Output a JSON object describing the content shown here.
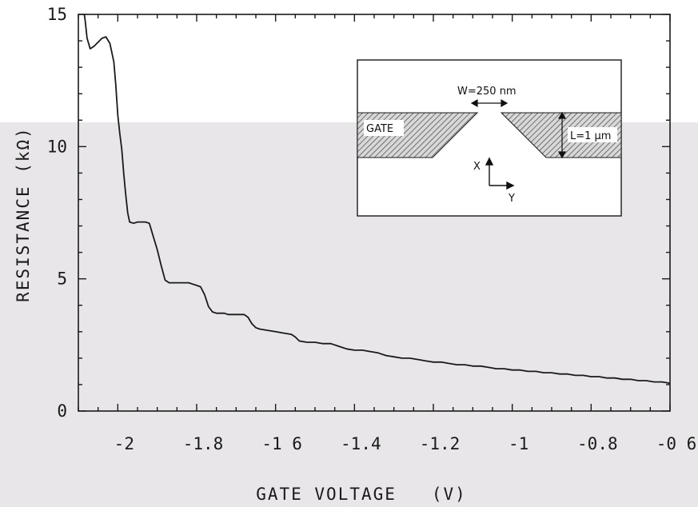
{
  "chart_data": {
    "type": "line",
    "xlabel": "GATE VOLTAGE   (V)",
    "ylabel": "RESISTANCE  (kΩ)",
    "xlim": [
      -2.1,
      -0.6
    ],
    "ylim": [
      0,
      15
    ],
    "x_ticks": [
      -2,
      -1.8,
      -1.6,
      -1.4,
      -1.2,
      -1,
      -0.8,
      -0.6
    ],
    "x_tick_labels": [
      "-2",
      "-1.8",
      "-1 6",
      "-1.4",
      "-1.2",
      "-1",
      "-0.8",
      "-0 6"
    ],
    "y_ticks": [
      0,
      5,
      10,
      15
    ],
    "y_tick_labels": [
      "0",
      "5",
      "10",
      "15"
    ],
    "grid": false,
    "series": [
      {
        "x": [
          -2.085,
          -2.083,
          -2.078,
          -2.07,
          -2.06,
          -2.05,
          -2.04,
          -2.03,
          -2.02,
          -2.01,
          -2.005,
          -2.0,
          -1.995,
          -1.99,
          -1.985,
          -1.98,
          -1.975,
          -1.97,
          -1.96,
          -1.95,
          -1.94,
          -1.93,
          -1.92,
          -1.91,
          -1.9,
          -1.89,
          -1.88,
          -1.87,
          -1.86,
          -1.85,
          -1.84,
          -1.83,
          -1.82,
          -1.81,
          -1.8,
          -1.79,
          -1.78,
          -1.77,
          -1.76,
          -1.75,
          -1.74,
          -1.73,
          -1.72,
          -1.7,
          -1.68,
          -1.67,
          -1.66,
          -1.65,
          -1.64,
          -1.62,
          -1.6,
          -1.58,
          -1.56,
          -1.55,
          -1.54,
          -1.52,
          -1.5,
          -1.48,
          -1.46,
          -1.44,
          -1.43,
          -1.42,
          -1.4,
          -1.38,
          -1.36,
          -1.34,
          -1.32,
          -1.3,
          -1.28,
          -1.26,
          -1.24,
          -1.22,
          -1.2,
          -1.18,
          -1.16,
          -1.14,
          -1.12,
          -1.1,
          -1.08,
          -1.06,
          -1.04,
          -1.02,
          -1.0,
          -0.98,
          -0.96,
          -0.94,
          -0.92,
          -0.9,
          -0.88,
          -0.86,
          -0.84,
          -0.82,
          -0.8,
          -0.78,
          -0.76,
          -0.74,
          -0.72,
          -0.7,
          -0.68,
          -0.66,
          -0.64,
          -0.62,
          -0.6
        ],
        "y": [
          15.2,
          14.8,
          14.1,
          13.7,
          13.8,
          13.95,
          14.1,
          14.15,
          13.9,
          13.2,
          12.3,
          11.2,
          10.5,
          9.9,
          9.0,
          8.2,
          7.5,
          7.15,
          7.1,
          7.15,
          7.15,
          7.15,
          7.1,
          6.6,
          6.1,
          5.5,
          4.95,
          4.85,
          4.85,
          4.85,
          4.85,
          4.85,
          4.85,
          4.8,
          4.75,
          4.7,
          4.4,
          3.95,
          3.75,
          3.7,
          3.7,
          3.7,
          3.65,
          3.65,
          3.65,
          3.55,
          3.3,
          3.15,
          3.1,
          3.05,
          3.0,
          2.95,
          2.9,
          2.8,
          2.65,
          2.6,
          2.6,
          2.55,
          2.55,
          2.45,
          2.4,
          2.35,
          2.3,
          2.3,
          2.25,
          2.2,
          2.1,
          2.05,
          2.0,
          2.0,
          1.95,
          1.9,
          1.85,
          1.85,
          1.8,
          1.75,
          1.75,
          1.7,
          1.7,
          1.65,
          1.6,
          1.6,
          1.55,
          1.55,
          1.5,
          1.5,
          1.45,
          1.45,
          1.4,
          1.4,
          1.35,
          1.35,
          1.3,
          1.3,
          1.25,
          1.25,
          1.2,
          1.2,
          1.15,
          1.15,
          1.1,
          1.1,
          1.05
        ]
      }
    ],
    "inset": {
      "width_label": "W=250 nm",
      "gate_label": "GATE",
      "length_label": "L=1 μm",
      "x_axis_label": "X",
      "y_axis_label": "Y"
    }
  }
}
